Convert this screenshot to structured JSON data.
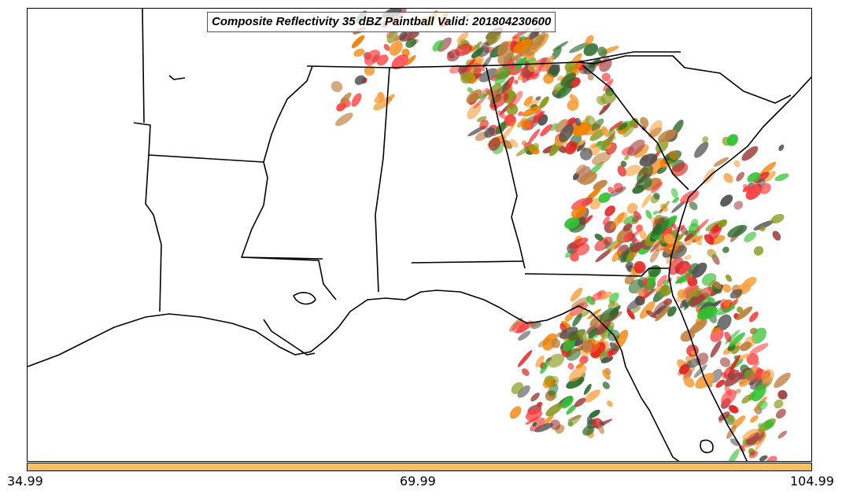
{
  "title": "Composite Reflectivity 35 dBZ Paintball Valid: 201804230600",
  "colorbar": {
    "color": "#f8c060",
    "ticks": [
      "34.99",
      "69.99",
      "104.99"
    ]
  },
  "map": {
    "region": "Southeastern United States",
    "background_color": "#ffffff",
    "boundary_color": "#000000",
    "member_colors": [
      "#ff4040",
      "#f08000",
      "#30c030",
      "#a04040",
      "#8a9a20",
      "#2a6a2a",
      "#f8a040",
      "#505050",
      "#e02020",
      "#c08040"
    ]
  }
}
